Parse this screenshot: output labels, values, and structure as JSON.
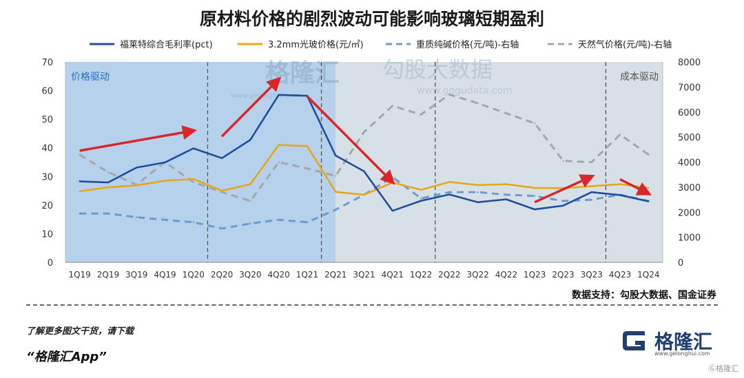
{
  "title": "原材料价格的剧烈波动可能影响玻璃短期盈利",
  "source": "数据支持：勾股大数据、国金证券",
  "footer": {
    "note": "了解更多图文干货，请下载",
    "app": "“格隆汇App”"
  },
  "logo": {
    "name": "格隆汇",
    "url": "www.gelonghui.com"
  },
  "watermark": {
    "brand": "格隆汇",
    "brand_url": "www.gelonghui.com",
    "data_brand": "勾股大数据",
    "data_url": "www.gogudata.com",
    "corner": "Ⓖ格隆汇"
  },
  "chart_data": {
    "type": "line",
    "categories": [
      "1Q19",
      "2Q19",
      "3Q19",
      "4Q19",
      "1Q20",
      "2Q20",
      "3Q20",
      "4Q20",
      "1Q21",
      "2Q21",
      "3Q21",
      "4Q21",
      "1Q22",
      "2Q22",
      "3Q22",
      "4Q22",
      "1Q23",
      "2Q23",
      "3Q23",
      "4Q23",
      "1Q24"
    ],
    "y_left": {
      "min": 0,
      "max": 70,
      "ticks": [
        0,
        10,
        20,
        30,
        40,
        50,
        60,
        70
      ]
    },
    "y_right": {
      "min": 0,
      "max": 8000,
      "ticks": [
        0,
        1000,
        2000,
        3000,
        4000,
        5000,
        6000,
        7000,
        8000
      ]
    },
    "series": [
      {
        "name": "福莱特综合毛利率(pct)",
        "axis": "left",
        "color": "#1f4e9c",
        "dash": "solid",
        "values": [
          28.3,
          27.9,
          33.1,
          34.9,
          39.8,
          36.4,
          42.8,
          58.5,
          58.2,
          37.3,
          31.8,
          18.0,
          21.5,
          23.7,
          21.0,
          22.0,
          18.5,
          19.8,
          24.5,
          23.5,
          21.3
        ]
      },
      {
        "name": "3.2mm光玻价格(元/㎡)",
        "axis": "left",
        "color": "#e6a817",
        "dash": "solid",
        "values": [
          24.8,
          26.2,
          26.9,
          28.5,
          29.1,
          25.0,
          27.3,
          41.0,
          40.6,
          24.6,
          23.6,
          27.9,
          25.3,
          28.1,
          27.0,
          27.3,
          26.0,
          25.9,
          26.6,
          27.3,
          26.0
        ]
      },
      {
        "name": "重质纯碱价格(元/吨)-右轴",
        "axis": "right",
        "color": "#6b9bd1",
        "dash": "dashed",
        "values": [
          1950,
          1950,
          1800,
          1700,
          1600,
          1350,
          1550,
          1700,
          1600,
          2100,
          2700,
          3400,
          2550,
          2800,
          2800,
          2700,
          2650,
          2450,
          2500,
          2700,
          2450
        ]
      },
      {
        "name": "天然气价格(元/吨)-右轴",
        "axis": "right",
        "color": "#a6a6a6",
        "dash": "dashed",
        "values": [
          4300,
          3600,
          3100,
          4000,
          3200,
          2800,
          2450,
          4000,
          3750,
          3450,
          5200,
          6250,
          5900,
          6700,
          6350,
          5950,
          5550,
          4050,
          4000,
          5100,
          4300
        ]
      }
    ],
    "regions": [
      {
        "label": "价格驱动",
        "from": "1Q19",
        "to": "2Q21",
        "color": "#a8c9e8"
      },
      {
        "label": "成本驱动",
        "from": "2Q21",
        "to": "1Q24",
        "color": "#d3dde4"
      }
    ],
    "dividers_after": [
      "1Q20",
      "1Q21",
      "1Q22",
      "3Q23"
    ],
    "arrows": [
      {
        "from": [
          "1Q19",
          39
        ],
        "to": [
          "1Q20",
          46
        ]
      },
      {
        "from": [
          "2Q20",
          44
        ],
        "to": [
          "4Q20",
          64
        ]
      },
      {
        "from": [
          "1Q21",
          58
        ],
        "to": [
          "4Q21",
          28
        ]
      },
      {
        "from": [
          "1Q23",
          21
        ],
        "to": [
          "3Q23",
          30
        ]
      },
      {
        "from": [
          "4Q23",
          29
        ],
        "to": [
          "1Q24",
          24
        ]
      }
    ]
  }
}
